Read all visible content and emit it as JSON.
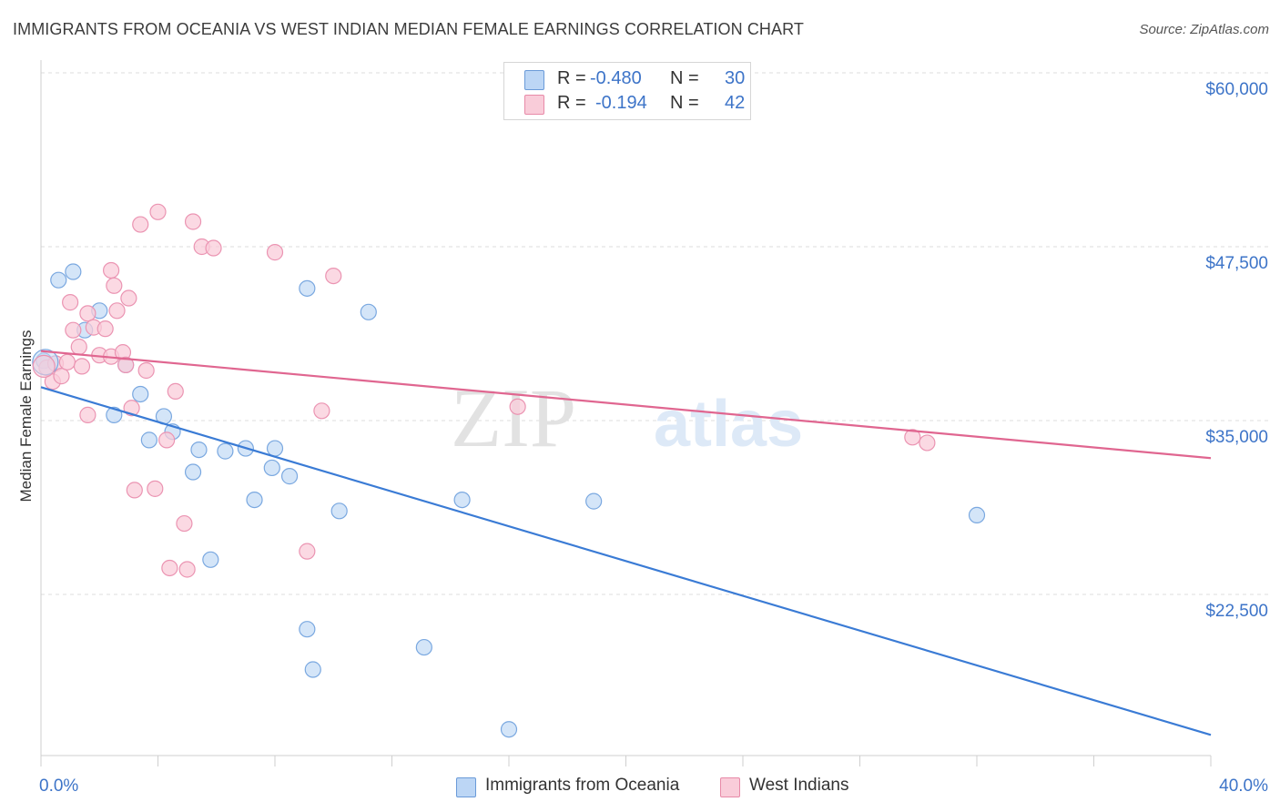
{
  "title": "IMMIGRANTS FROM OCEANIA VS WEST INDIAN MEDIAN FEMALE EARNINGS CORRELATION CHART",
  "source": "Source: ZipAtlas.com",
  "watermark": {
    "part1": "ZIP",
    "part2": "atlas"
  },
  "legend": {
    "r_label": "R =",
    "n_label": "N =",
    "rows": [
      {
        "r": "-0.480",
        "n": "30",
        "color": "#a8c8f0",
        "border": "#6a9ad8"
      },
      {
        "r": "-0.194",
        "n": "42",
        "color": "#f7bfd0",
        "border": "#e88aa8"
      }
    ]
  },
  "bottom_legend": [
    {
      "label": "Immigrants from Oceania",
      "color": "#bcd6f5",
      "border": "#6a9ad8"
    },
    {
      "label": "West Indians",
      "color": "#f9ccd9",
      "border": "#e88aa8"
    }
  ],
  "chart_data": {
    "type": "scatter",
    "title": "IMMIGRANTS FROM OCEANIA VS WEST INDIAN MEDIAN FEMALE EARNINGS CORRELATION CHART",
    "xlabel": "",
    "ylabel": "Median Female Earnings",
    "xlim": [
      0,
      40
    ],
    "ylim": [
      12000,
      61000
    ],
    "x_tick_labels": [
      "0.0%",
      "40.0%"
    ],
    "y_ticks": [
      22500,
      35000,
      47500,
      60000
    ],
    "y_tick_labels": [
      "$22,500",
      "$35,000",
      "$47,500",
      "$60,000"
    ],
    "grid": true,
    "series": [
      {
        "name": "Immigrants from Oceania",
        "color": "#3a7bd5",
        "fill": "#c5dcf6",
        "stroke": "#7aa8e0",
        "trend": {
          "x": [
            0,
            40
          ],
          "y": [
            37400,
            12400
          ]
        },
        "points": [
          [
            0.1,
            39300
          ],
          [
            0.6,
            45100
          ],
          [
            1.1,
            45700
          ],
          [
            1.5,
            41500
          ],
          [
            2.0,
            42900
          ],
          [
            2.5,
            35400
          ],
          [
            2.9,
            39000
          ],
          [
            3.4,
            36900
          ],
          [
            3.7,
            33600
          ],
          [
            4.2,
            35300
          ],
          [
            4.5,
            34200
          ],
          [
            5.2,
            31300
          ],
          [
            5.4,
            32900
          ],
          [
            5.8,
            25000
          ],
          [
            6.3,
            32800
          ],
          [
            7.0,
            33000
          ],
          [
            7.3,
            29300
          ],
          [
            7.9,
            31600
          ],
          [
            8.0,
            33000
          ],
          [
            8.5,
            31000
          ],
          [
            9.1,
            44500
          ],
          [
            9.1,
            20000
          ],
          [
            9.3,
            17100
          ],
          [
            10.2,
            28500
          ],
          [
            11.2,
            42800
          ],
          [
            13.1,
            18700
          ],
          [
            14.4,
            29300
          ],
          [
            18.9,
            29200
          ],
          [
            32.0,
            28200
          ],
          [
            16.0,
            12800
          ]
        ]
      },
      {
        "name": "West Indians",
        "color": "#e06690",
        "fill": "#f9ccd9",
        "stroke": "#eb94b2",
        "trend": {
          "x": [
            0,
            40
          ],
          "y": [
            40000,
            32300
          ]
        },
        "points": [
          [
            0.2,
            38800
          ],
          [
            0.4,
            37800
          ],
          [
            0.5,
            39100
          ],
          [
            0.7,
            38200
          ],
          [
            0.9,
            39200
          ],
          [
            1.0,
            43500
          ],
          [
            1.1,
            41500
          ],
          [
            1.3,
            40300
          ],
          [
            1.4,
            38900
          ],
          [
            1.6,
            42700
          ],
          [
            1.6,
            35400
          ],
          [
            1.8,
            41700
          ],
          [
            2.0,
            39700
          ],
          [
            2.2,
            41600
          ],
          [
            2.4,
            39600
          ],
          [
            2.4,
            45800
          ],
          [
            2.5,
            44700
          ],
          [
            2.6,
            42900
          ],
          [
            2.8,
            39900
          ],
          [
            2.9,
            39000
          ],
          [
            3.0,
            43800
          ],
          [
            3.1,
            35900
          ],
          [
            3.2,
            30000
          ],
          [
            3.4,
            49100
          ],
          [
            3.6,
            38600
          ],
          [
            3.9,
            30100
          ],
          [
            4.0,
            50000
          ],
          [
            4.3,
            33600
          ],
          [
            4.4,
            24400
          ],
          [
            4.6,
            37100
          ],
          [
            4.9,
            27600
          ],
          [
            5.0,
            24300
          ],
          [
            5.2,
            49300
          ],
          [
            5.5,
            47500
          ],
          [
            5.9,
            47400
          ],
          [
            8.0,
            47100
          ],
          [
            9.1,
            25600
          ],
          [
            9.6,
            35700
          ],
          [
            10.0,
            45400
          ],
          [
            16.3,
            36000
          ],
          [
            29.8,
            33800
          ],
          [
            30.3,
            33400
          ]
        ]
      }
    ]
  }
}
